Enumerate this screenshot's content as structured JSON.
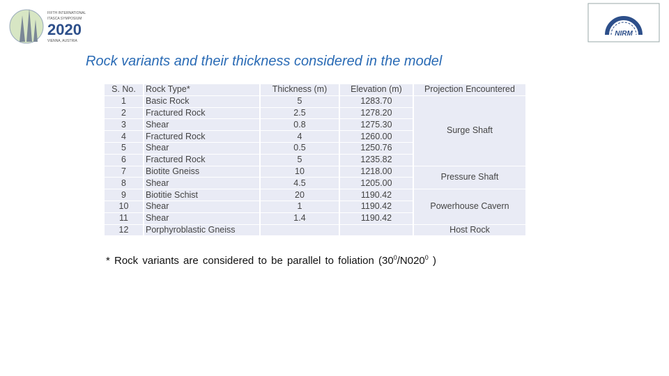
{
  "logos": {
    "left": {
      "lines": [
        "FIFTH INTERNATIONAL",
        "ITASCA SYMPOSIUM",
        "2020",
        "VIENNA, AUSTRIA"
      ]
    },
    "right": {
      "label": "NIRM"
    }
  },
  "title": "Rock variants and their thickness considered in the model",
  "table": {
    "header": [
      "S. No.",
      "Rock Type*",
      "Thickness (m)",
      "Elevation (m)",
      "Projection Encountered"
    ],
    "rows": [
      [
        "1",
        "Basic Rock",
        "5",
        "1283.70"
      ],
      [
        "2",
        "Fractured Rock",
        "2.5",
        "1278.20"
      ],
      [
        "3",
        "Shear",
        "0.8",
        "1275.30"
      ],
      [
        "4",
        "Fractured Rock",
        "4",
        "1260.00"
      ],
      [
        "5",
        "Shear",
        "0.5",
        "1250.76"
      ],
      [
        "6",
        "Fractured Rock",
        "5",
        "1235.82"
      ],
      [
        "7",
        "Biotite Gneiss",
        "10",
        "1218.00"
      ],
      [
        "8",
        "Shear",
        "4.5",
        "1205.00"
      ],
      [
        "9",
        "Biotitie Schist",
        "20",
        "1190.42"
      ],
      [
        "10",
        "Shear",
        "1",
        "1190.42"
      ],
      [
        "11",
        "Shear",
        "1.4",
        "1190.42"
      ],
      [
        "12",
        "Porphyroblastic Gneiss"
      ]
    ],
    "projections": [
      {
        "label": "Surge Shaft",
        "rows": 6
      },
      {
        "label": "Pressure Shaft",
        "rows": 2
      },
      {
        "label": "Powerhouse Cavern",
        "rows": 3
      },
      {
        "label": "Host Rock",
        "rows": 1
      }
    ]
  },
  "footnote": [
    {
      "text": "* Rock variants are considered to be parallel to foliation (30"
    },
    {
      "sup": "0"
    },
    {
      "text": "/N020"
    },
    {
      "sup": "0"
    },
    {
      "text": " )"
    }
  ]
}
